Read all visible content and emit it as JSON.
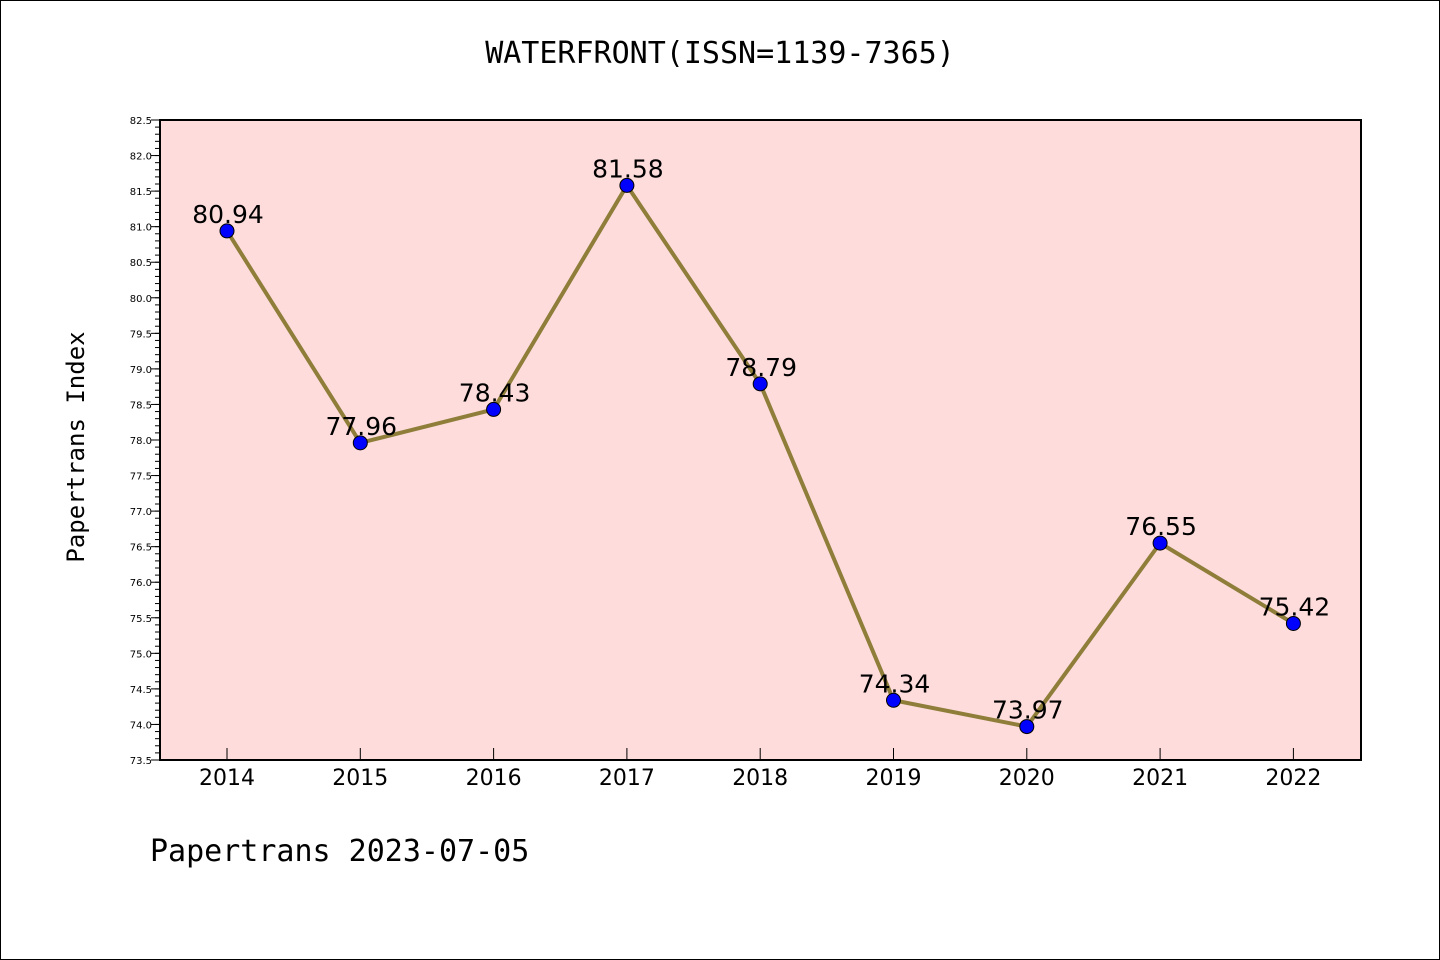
{
  "chart_data": {
    "type": "line",
    "title": "WATERFRONT(ISSN=1139-7365)",
    "xlabel": "",
    "ylabel": "Papertrans Index",
    "categories": [
      "2014",
      "2015",
      "2016",
      "2017",
      "2018",
      "2019",
      "2020",
      "2021",
      "2022"
    ],
    "series": [
      {
        "values": [
          80.94,
          77.96,
          78.43,
          81.58,
          78.79,
          74.34,
          73.97,
          76.55,
          75.42
        ],
        "data_labels": [
          "80.94",
          "77.96",
          "78.43",
          "81.58",
          "78.79",
          "74.34",
          "73.97",
          "76.55",
          "75.42"
        ]
      }
    ],
    "ylim": [
      73.5,
      82.5
    ],
    "yticks": [
      "73.5",
      "74.0",
      "74.5",
      "75.0",
      "75.5",
      "76.0",
      "76.5",
      "77.0",
      "77.5",
      "78.0",
      "78.5",
      "79.0",
      "79.5",
      "80.0",
      "80.5",
      "81.0",
      "81.5",
      "82.0",
      "82.5"
    ],
    "grid": false,
    "colors": {
      "plot_background": "#fddcdb",
      "line": "#8f7d3a",
      "marker": "#0000ff"
    }
  },
  "footer": {
    "text": "Papertrans 2023-07-05"
  }
}
